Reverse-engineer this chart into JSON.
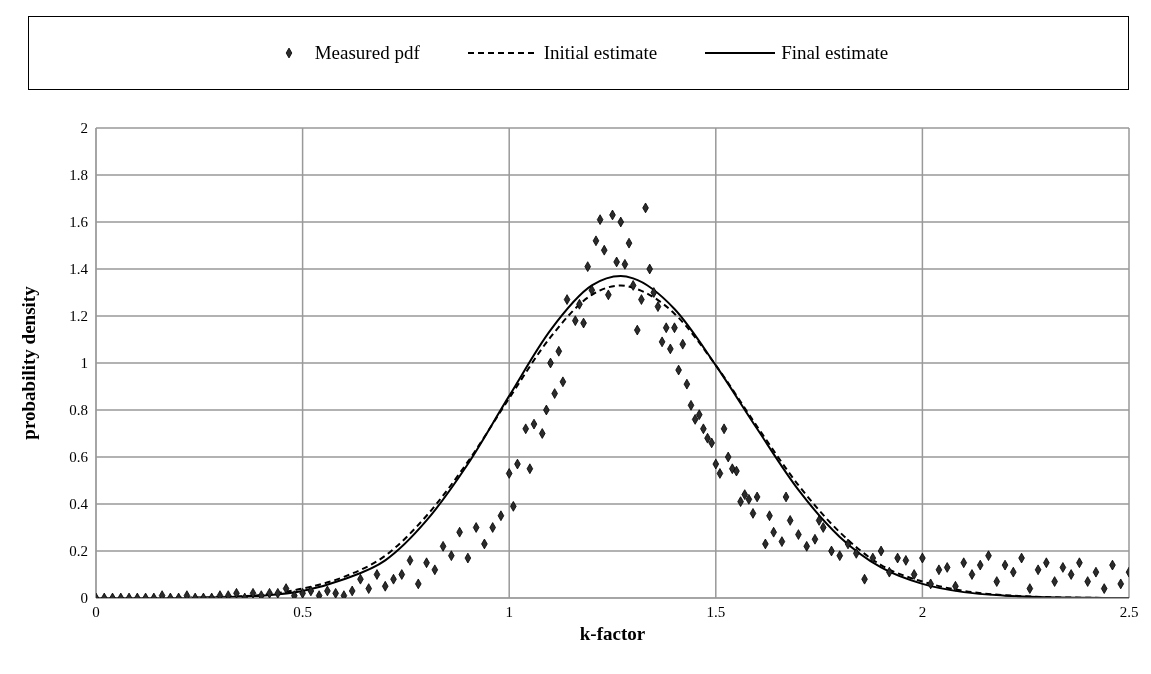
{
  "chart_data": {
    "type": "scatter",
    "xlabel": "k-factor",
    "ylabel": "probability density",
    "xlim": [
      0,
      2.5
    ],
    "xticks": [
      0,
      0.5,
      1,
      1.5,
      2,
      2.5
    ],
    "ylim": [
      0,
      2
    ],
    "yticks": [
      0,
      0.2,
      0.4,
      0.6,
      0.8,
      1,
      1.2,
      1.4,
      1.6,
      1.8,
      2
    ],
    "grid": true,
    "legend": "top",
    "series": [
      {
        "name": "Measured pdf",
        "marker": "diamond",
        "color": "#2b2b2b",
        "x": [
          0,
          0.02,
          0.04,
          0.06,
          0.08,
          0.1,
          0.12,
          0.14,
          0.16,
          0.18,
          0.2,
          0.22,
          0.24,
          0.26,
          0.28,
          0.3,
          0.32,
          0.34,
          0.36,
          0.38,
          0.4,
          0.42,
          0.44,
          0.46,
          0.48,
          0.5,
          0.52,
          0.54,
          0.56,
          0.58,
          0.6,
          0.62,
          0.64,
          0.66,
          0.68,
          0.7,
          0.72,
          0.74,
          0.76,
          0.78,
          0.8,
          0.82,
          0.84,
          0.86,
          0.88,
          0.9,
          0.92,
          0.94,
          0.96,
          0.98,
          1,
          1.01,
          1.02,
          1.04,
          1.05,
          1.06,
          1.08,
          1.09,
          1.1,
          1.11,
          1.12,
          1.13,
          1.14,
          1.16,
          1.17,
          1.18,
          1.19,
          1.2,
          1.21,
          1.22,
          1.23,
          1.24,
          1.25,
          1.26,
          1.27,
          1.28,
          1.29,
          1.3,
          1.31,
          1.32,
          1.33,
          1.34,
          1.35,
          1.36,
          1.37,
          1.38,
          1.39,
          1.4,
          1.41,
          1.42,
          1.43,
          1.44,
          1.45,
          1.46,
          1.47,
          1.48,
          1.49,
          1.5,
          1.51,
          1.52,
          1.53,
          1.54,
          1.55,
          1.56,
          1.57,
          1.58,
          1.59,
          1.6,
          1.62,
          1.63,
          1.64,
          1.66,
          1.67,
          1.68,
          1.7,
          1.72,
          1.74,
          1.75,
          1.76,
          1.78,
          1.8,
          1.82,
          1.84,
          1.86,
          1.88,
          1.9,
          1.92,
          1.94,
          1.96,
          1.98,
          2,
          2.02,
          2.04,
          2.06,
          2.08,
          2.1,
          2.12,
          2.14,
          2.16,
          2.18,
          2.2,
          2.22,
          2.24,
          2.26,
          2.28,
          2.3,
          2.32,
          2.34,
          2.36,
          2.38,
          2.4,
          2.42,
          2.44,
          2.46,
          2.48,
          2.5
        ],
        "values": [
          0,
          0,
          0,
          0,
          0,
          0,
          0,
          0,
          0.01,
          0,
          0,
          0.01,
          0,
          0,
          0,
          0.01,
          0.01,
          0.02,
          0,
          0.02,
          0.01,
          0.02,
          0.02,
          0.04,
          0.01,
          0.02,
          0.03,
          0.01,
          0.03,
          0.02,
          0.01,
          0.03,
          0.08,
          0.04,
          0.1,
          0.05,
          0.08,
          0.1,
          0.16,
          0.06,
          0.15,
          0.12,
          0.22,
          0.18,
          0.28,
          0.17,
          0.3,
          0.23,
          0.3,
          0.35,
          0.53,
          0.39,
          0.57,
          0.72,
          0.55,
          0.74,
          0.7,
          0.8,
          1,
          0.87,
          1.05,
          0.92,
          1.27,
          1.18,
          1.25,
          1.17,
          1.41,
          1.31,
          1.52,
          1.61,
          1.48,
          1.29,
          1.63,
          1.43,
          1.6,
          1.42,
          1.51,
          1.33,
          1.14,
          1.27,
          1.66,
          1.4,
          1.3,
          1.24,
          1.09,
          1.15,
          1.06,
          1.15,
          0.97,
          1.08,
          0.91,
          0.82,
          0.76,
          0.78,
          0.72,
          0.68,
          0.66,
          0.57,
          0.53,
          0.72,
          0.6,
          0.55,
          0.54,
          0.41,
          0.44,
          0.42,
          0.36,
          0.43,
          0.23,
          0.35,
          0.28,
          0.24,
          0.43,
          0.33,
          0.27,
          0.22,
          0.25,
          0.33,
          0.3,
          0.2,
          0.18,
          0.23,
          0.19,
          0.08,
          0.17,
          0.2,
          0.11,
          0.17,
          0.16,
          0.1,
          0.17,
          0.06,
          0.12,
          0.13,
          0.05,
          0.15,
          0.1,
          0.14,
          0.18,
          0.07,
          0.14,
          0.11,
          0.17,
          0.04,
          0.12,
          0.15,
          0.07,
          0.13,
          0.1,
          0.15,
          0.07,
          0.11,
          0.04,
          0.14,
          0.06,
          0.11
        ]
      },
      {
        "name": "Initial estimate",
        "type": "line",
        "line_style": "dashed",
        "marker": "none",
        "color": "#000000",
        "x": [
          0,
          0.1,
          0.2,
          0.3,
          0.4,
          0.5,
          0.6,
          0.7,
          0.8,
          0.9,
          1,
          1.1,
          1.2,
          1.27,
          1.3,
          1.4,
          1.5,
          1.6,
          1.7,
          1.8,
          1.9,
          2,
          2.1,
          2.2,
          2.3,
          2.4,
          2.5
        ],
        "values": [
          0,
          0,
          0.001,
          0.004,
          0.013,
          0.04,
          0.09,
          0.18,
          0.35,
          0.58,
          0.85,
          1.11,
          1.29,
          1.33,
          1.32,
          1.21,
          0.99,
          0.73,
          0.48,
          0.28,
          0.14,
          0.07,
          0.03,
          0.012,
          0.004,
          0.001,
          0
        ]
      },
      {
        "name": "Final estimate",
        "type": "line",
        "line_style": "solid",
        "marker": "none",
        "color": "#000000",
        "x": [
          0,
          0.1,
          0.2,
          0.3,
          0.4,
          0.5,
          0.6,
          0.7,
          0.8,
          0.9,
          1,
          1.1,
          1.2,
          1.27,
          1.3,
          1.4,
          1.5,
          1.6,
          1.7,
          1.8,
          1.9,
          2,
          2.1,
          2.2,
          2.3,
          2.4,
          2.5
        ],
        "values": [
          0,
          0,
          0,
          0.003,
          0.01,
          0.03,
          0.08,
          0.16,
          0.33,
          0.57,
          0.86,
          1.14,
          1.33,
          1.37,
          1.36,
          1.23,
          0.99,
          0.72,
          0.46,
          0.26,
          0.13,
          0.06,
          0.025,
          0.01,
          0.003,
          0.001,
          0
        ]
      }
    ]
  }
}
